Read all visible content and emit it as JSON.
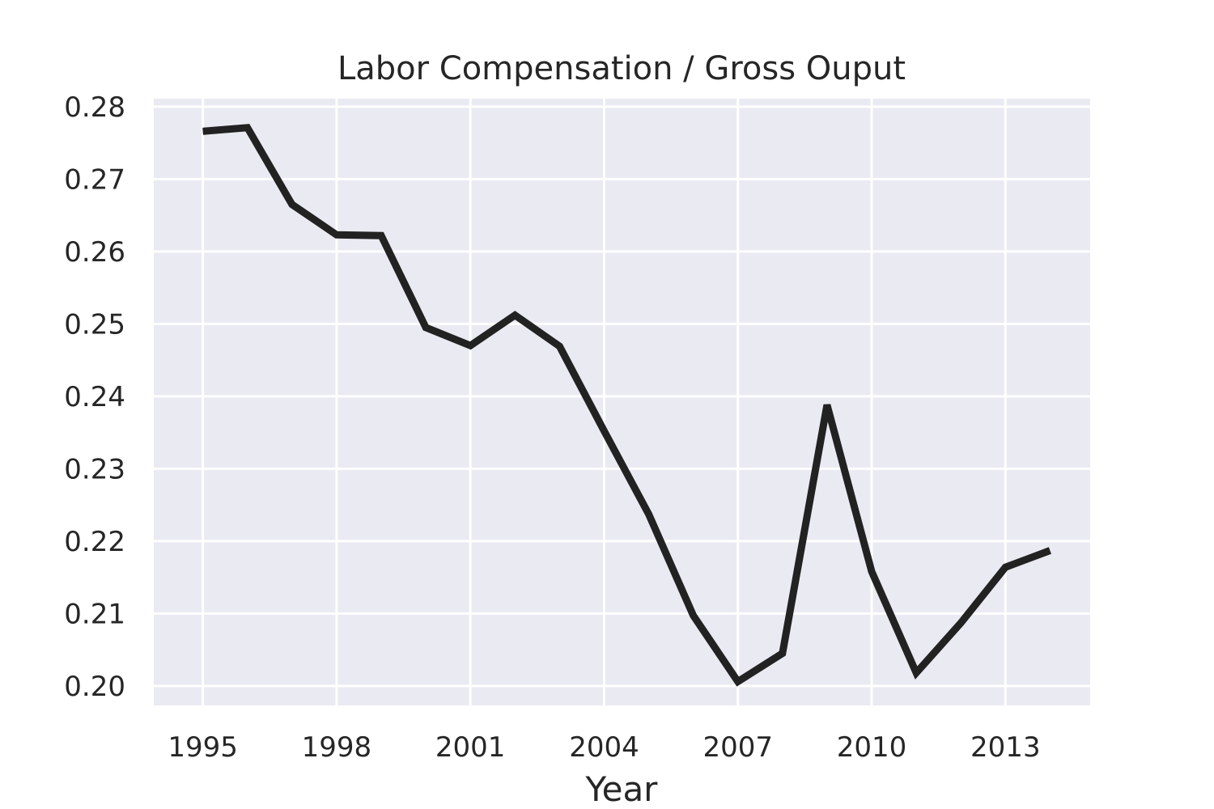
{
  "chart_data": {
    "type": "line",
    "title": "Labor Compensation / Gross Ouput",
    "xlabel": "Year",
    "ylabel": "",
    "xlim": [
      1993.9,
      2014.9
    ],
    "ylim": [
      0.1973,
      0.2811
    ],
    "x_ticks": [
      "1995",
      "1998",
      "2001",
      "2004",
      "2007",
      "2010",
      "2013"
    ],
    "y_ticks": [
      "0.20",
      "0.21",
      "0.22",
      "0.23",
      "0.24",
      "0.25",
      "0.26",
      "0.27",
      "0.28"
    ],
    "grid": true,
    "background_color": "#EAEAF2",
    "grid_color": "#FFFFFF",
    "text_color": "#262626",
    "series": [
      {
        "color": "#222222",
        "x": [
          1995,
          1996,
          1997,
          1998,
          1999,
          2000,
          2001,
          2002,
          2003,
          2004,
          2005,
          2006,
          2007,
          2008,
          2009,
          2010,
          2011,
          2012,
          2013,
          2014
        ],
        "values": [
          0.2766,
          0.2771,
          0.2665,
          0.2623,
          0.2622,
          0.2495,
          0.247,
          0.2512,
          0.2469,
          0.2352,
          0.2237,
          0.2097,
          0.2006,
          0.2045,
          0.2388,
          0.2158,
          0.2018,
          0.2087,
          0.2164,
          0.2187
        ]
      }
    ]
  }
}
